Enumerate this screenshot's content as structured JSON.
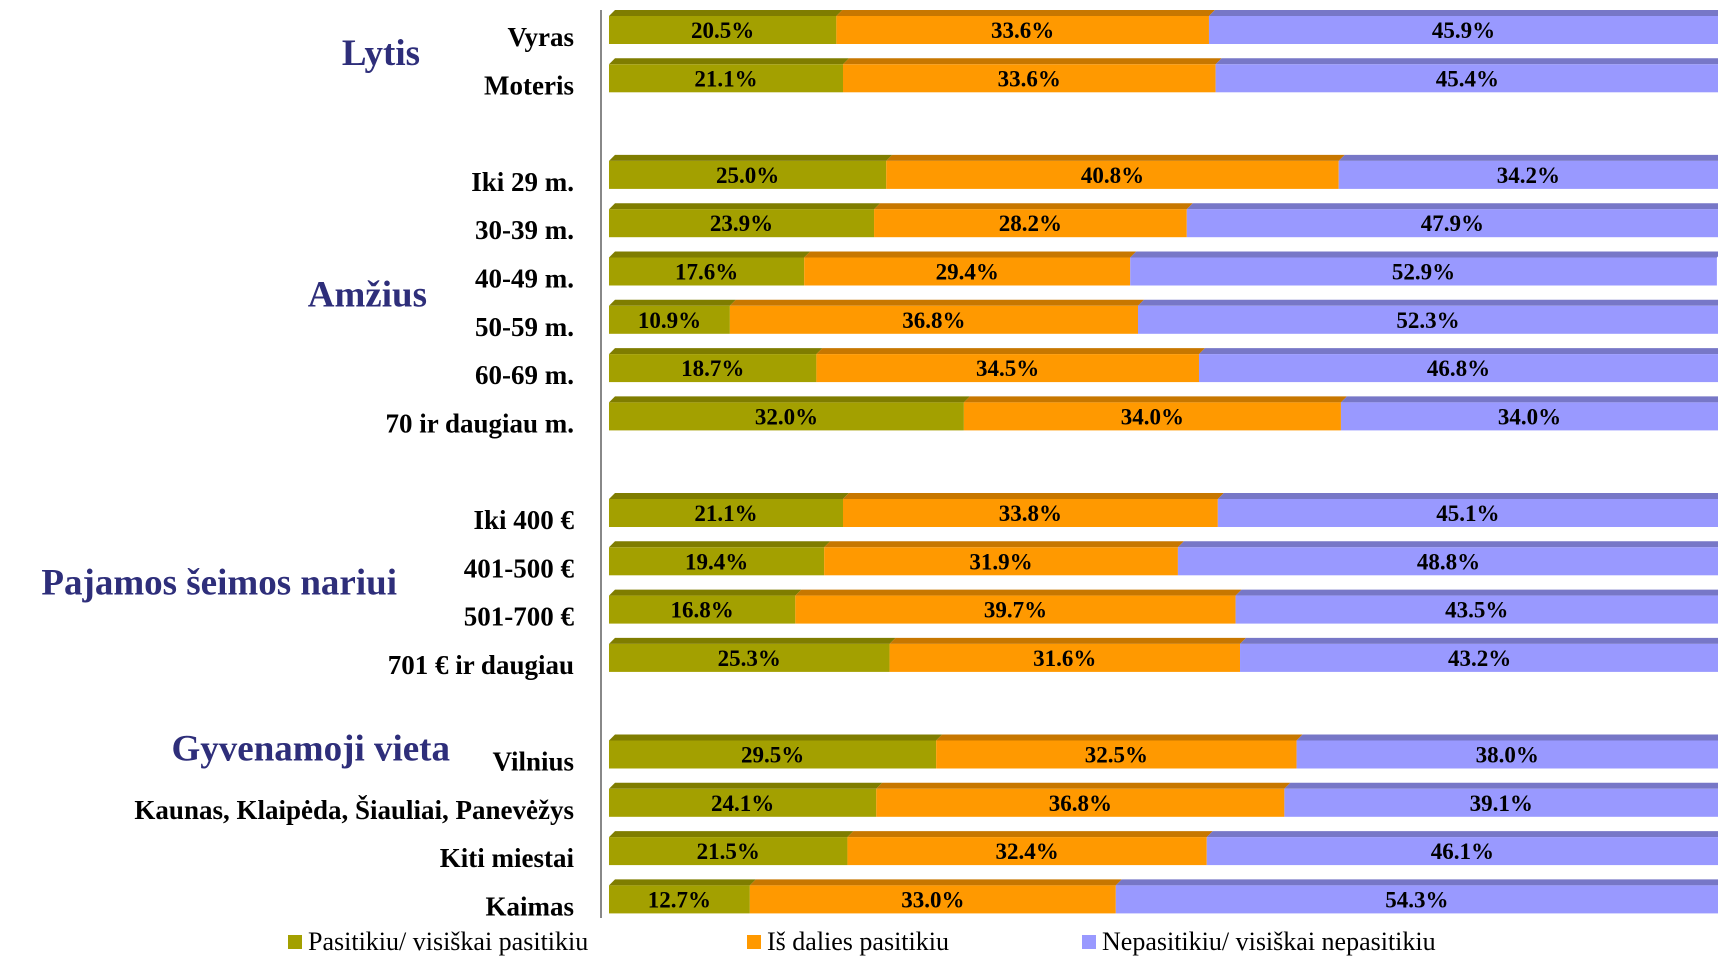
{
  "chart_data": {
    "type": "bar",
    "orientation": "horizontal",
    "stacked": true,
    "grid": false,
    "legend_position": "bottom",
    "xlim": [
      0,
      100
    ],
    "series": [
      {
        "name": "Pasitikiu/ visiškai pasitikiu",
        "color": "#A3A000"
      },
      {
        "name": "Iš dalies pasitikiu",
        "color": "#FF9900"
      },
      {
        "name": "Nepasitikiu/ visiškai nepasitikiu",
        "color": "#9999FF"
      }
    ],
    "groups": [
      {
        "name": "Lytis",
        "rows": [
          {
            "category": "Vyras",
            "values": [
              20.5,
              33.6,
              45.9
            ],
            "labels": [
              "20.5%",
              "33.6%",
              "45.9%"
            ]
          },
          {
            "category": "Moteris",
            "values": [
              21.1,
              33.6,
              45.4
            ],
            "labels": [
              "21.1%",
              "33.6%",
              "45.4%"
            ]
          }
        ]
      },
      {
        "name": "Amžius",
        "rows": [
          {
            "category": "Iki 29 m.",
            "values": [
              25.0,
              40.8,
              34.2
            ],
            "labels": [
              "25.0%",
              "40.8%",
              "34.2%"
            ]
          },
          {
            "category": "30-39 m.",
            "values": [
              23.9,
              28.2,
              47.9
            ],
            "labels": [
              "23.9%",
              "28.2%",
              "47.9%"
            ]
          },
          {
            "category": "40-49 m.",
            "values": [
              17.6,
              29.4,
              52.9
            ],
            "labels": [
              "17.6%",
              "29.4%",
              "52.9%"
            ]
          },
          {
            "category": "50-59 m.",
            "values": [
              10.9,
              36.8,
              52.3
            ],
            "labels": [
              "10.9%",
              "36.8%",
              "52.3%"
            ]
          },
          {
            "category": "60-69 m.",
            "values": [
              18.7,
              34.5,
              46.8
            ],
            "labels": [
              "18.7%",
              "34.5%",
              "46.8%"
            ]
          },
          {
            "category": "70 ir daugiau m.",
            "values": [
              32.0,
              34.0,
              34.0
            ],
            "labels": [
              "32.0%",
              "34.0%",
              "34.0%"
            ]
          }
        ]
      },
      {
        "name": "Pajamos šeimos nariui",
        "rows": [
          {
            "category": "Iki 400 €",
            "values": [
              21.1,
              33.8,
              45.1
            ],
            "labels": [
              "21.1%",
              "33.8%",
              "45.1%"
            ]
          },
          {
            "category": "401-500 €",
            "values": [
              19.4,
              31.9,
              48.8
            ],
            "labels": [
              "19.4%",
              "31.9%",
              "48.8%"
            ]
          },
          {
            "category": "501-700 €",
            "values": [
              16.8,
              39.7,
              43.5
            ],
            "labels": [
              "16.8%",
              "39.7%",
              "43.5%"
            ]
          },
          {
            "category": "701 € ir daugiau",
            "values": [
              25.3,
              31.6,
              43.2
            ],
            "labels": [
              "25.3%",
              "31.6%",
              "43.2%"
            ]
          }
        ]
      },
      {
        "name": "Gyvenamoji vieta",
        "rows": [
          {
            "category": "Vilnius",
            "values": [
              29.5,
              32.5,
              38.0
            ],
            "labels": [
              "29.5%",
              "32.5%",
              "38.0%"
            ]
          },
          {
            "category": "Kaunas, Klaipėda, Šiauliai, Panevėžys",
            "values": [
              24.1,
              36.8,
              39.1
            ],
            "labels": [
              "24.1%",
              "36.8%",
              "39.1%"
            ]
          },
          {
            "category": "Kiti miestai",
            "values": [
              21.5,
              32.4,
              46.1
            ],
            "labels": [
              "21.5%",
              "32.4%",
              "46.1%"
            ]
          },
          {
            "category": "Kaimas",
            "values": [
              12.7,
              33.0,
              54.3
            ],
            "labels": [
              "12.7%",
              "33.0%",
              "54.3%"
            ]
          }
        ]
      }
    ]
  }
}
